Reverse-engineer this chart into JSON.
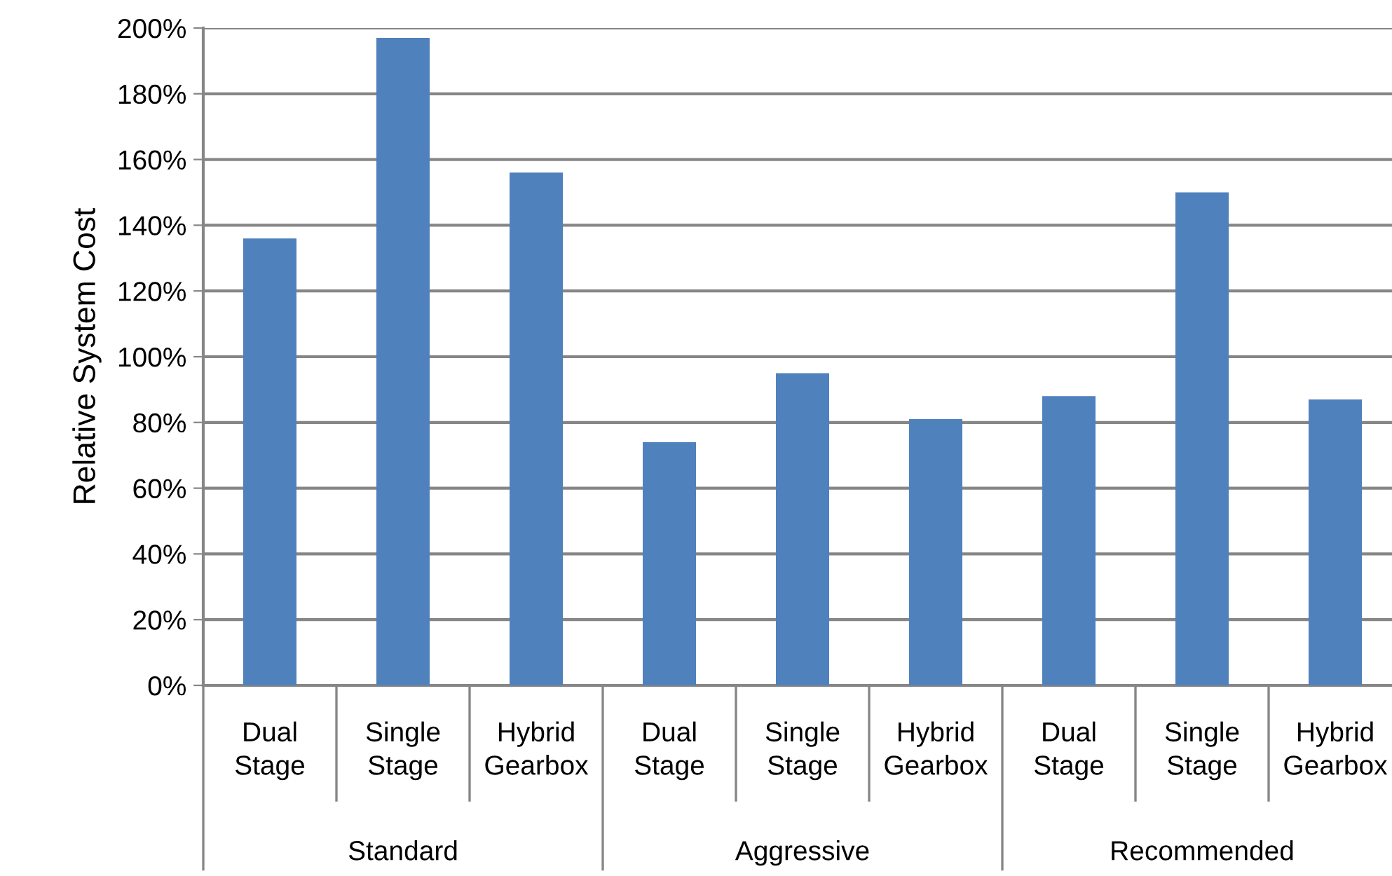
{
  "chart_data": {
    "type": "bar",
    "ylabel": "Relative System Cost",
    "categories": [
      "Dual\nStage",
      "Single\nStage",
      "Hybrid\nGearbox",
      "Dual\nStage",
      "Single\nStage",
      "Hybrid\nGearbox",
      "Dual\nStage",
      "Single\nStage",
      "Hybrid\nGearbox"
    ],
    "values": [
      136,
      197,
      156,
      74,
      95,
      81,
      88,
      150,
      87
    ],
    "color": "#4f81bd",
    "annotations": [
      "Standard",
      "Aggressive",
      "Recommended"
    ],
    "ylim": [
      0,
      200
    ],
    "yticks": [
      {
        "value": 0,
        "label": "0%"
      },
      {
        "value": 20,
        "label": "20%"
      },
      {
        "value": 40,
        "label": "40%"
      },
      {
        "value": 60,
        "label": "60%"
      },
      {
        "value": 80,
        "label": "80%"
      },
      {
        "value": 100,
        "label": "100%"
      },
      {
        "value": 120,
        "label": "120%"
      },
      {
        "value": 140,
        "label": "140%"
      },
      {
        "value": 160,
        "label": "160%"
      },
      {
        "value": 180,
        "label": "180%"
      },
      {
        "value": 200,
        "label": "200%"
      }
    ],
    "grid": "y",
    "legend": false
  }
}
